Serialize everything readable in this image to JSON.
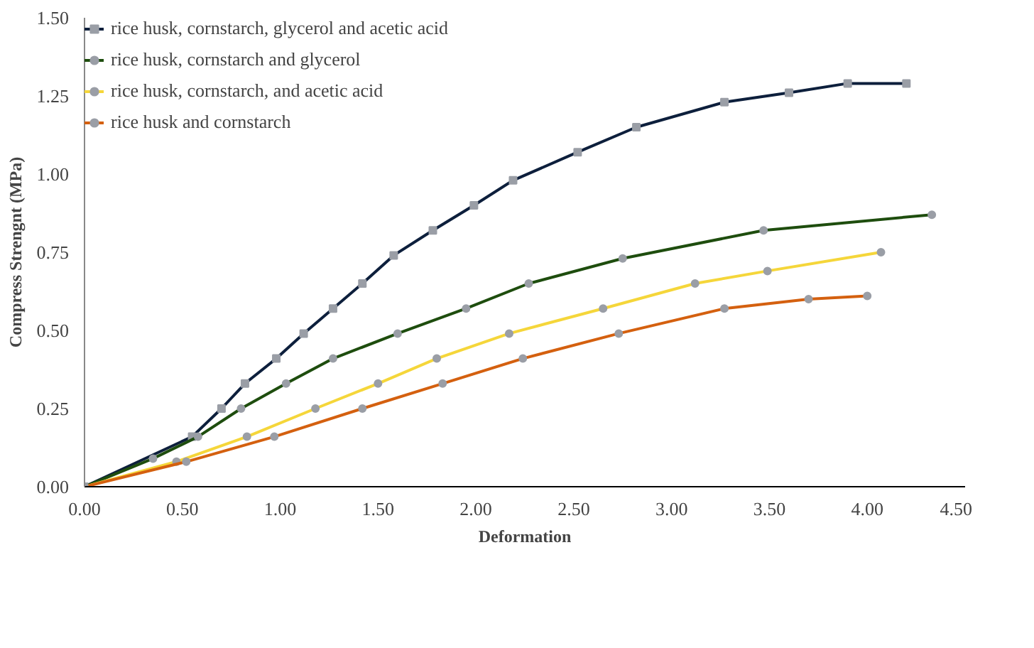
{
  "chart_data": {
    "type": "line",
    "xlabel": "Deformation",
    "ylabel": "Compress Strengnt (MPa)",
    "xlim": [
      0,
      4.5
    ],
    "xticks": [
      {
        "value": 0,
        "label": "0.00"
      },
      {
        "value": 0.5,
        "label": "0.50"
      },
      {
        "value": 1,
        "label": "1.00"
      },
      {
        "value": 1.5,
        "label": "1.50"
      },
      {
        "value": 2,
        "label": "2.00"
      },
      {
        "value": 2.5,
        "label": "2.50"
      },
      {
        "value": 3,
        "label": "3.00"
      },
      {
        "value": 3.5,
        "label": "3.50"
      },
      {
        "value": 4,
        "label": "4.00"
      },
      {
        "value": 4.5,
        "label": "4.50"
      }
    ],
    "ylim": [
      0,
      1.5
    ],
    "yticks": [
      {
        "value": 0,
        "label": "0.00"
      },
      {
        "value": 0.25,
        "label": "0.25"
      },
      {
        "value": 0.5,
        "label": "0.50"
      },
      {
        "value": 0.75,
        "label": "0.75"
      },
      {
        "value": 1,
        "label": "1.00"
      },
      {
        "value": 1.25,
        "label": "1.25"
      },
      {
        "value": 1.5,
        "label": "1.50"
      }
    ],
    "grid": false,
    "legend": "top left",
    "marker": "circle",
    "line_style": "solid",
    "series": [
      {
        "name": "rice husk, cornstarch, glycerol and acetic acid",
        "color": "#0d1f3c",
        "marker": "square",
        "x": [
          0,
          0.55,
          0.7,
          0.82,
          0.98,
          1.12,
          1.27,
          1.42,
          1.58,
          1.78,
          1.99,
          2.19,
          2.52,
          2.82,
          3.27,
          3.6,
          3.9,
          4.2
        ],
        "values": [
          0,
          0.16,
          0.25,
          0.33,
          0.41,
          0.49,
          0.57,
          0.65,
          0.74,
          0.82,
          0.9,
          0.98,
          1.07,
          1.15,
          1.23,
          1.26,
          1.29,
          1.29
        ]
      },
      {
        "name": "rice husk, cornstarch and glycerol",
        "color": "#1e4d0e",
        "x": [
          0,
          0.35,
          0.58,
          0.8,
          1.03,
          1.27,
          1.6,
          1.95,
          2.27,
          2.75,
          3.47,
          4.33
        ],
        "values": [
          0,
          0.09,
          0.16,
          0.25,
          0.33,
          0.41,
          0.49,
          0.57,
          0.65,
          0.73,
          0.82,
          0.87
        ]
      },
      {
        "name": "rice husk, cornstarch, and acetic acid",
        "color": "#f5d63a",
        "x": [
          0,
          0.47,
          0.83,
          1.18,
          1.5,
          1.8,
          2.17,
          2.65,
          3.12,
          3.49,
          4.07
        ],
        "values": [
          0,
          0.08,
          0.16,
          0.25,
          0.33,
          0.41,
          0.49,
          0.57,
          0.65,
          0.69,
          0.75
        ]
      },
      {
        "name": "rice husk and cornstarch",
        "color": "#d4600f",
        "x": [
          0,
          0.52,
          0.97,
          1.42,
          1.83,
          2.24,
          2.73,
          3.27,
          3.7,
          4.0
        ],
        "values": [
          0,
          0.08,
          0.16,
          0.25,
          0.33,
          0.41,
          0.49,
          0.57,
          0.6,
          0.61
        ]
      }
    ]
  }
}
